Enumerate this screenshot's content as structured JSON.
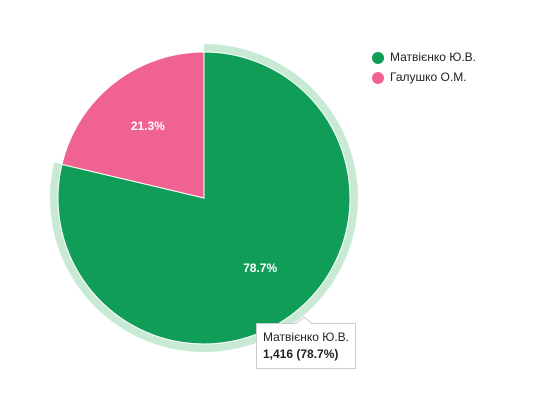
{
  "chart_data": {
    "type": "pie",
    "categories": [
      "Матвієнко Ю.В.",
      "Галушко О.М."
    ],
    "values": [
      78.7,
      21.3
    ],
    "value_labels": [
      "78.7%",
      "21.3%"
    ],
    "colors": [
      "#0f9d58",
      "#f06292"
    ],
    "legend": "right",
    "tooltip": {
      "title": "Матвієнко Ю.В.",
      "text": "1,416 (78.7%)"
    }
  }
}
